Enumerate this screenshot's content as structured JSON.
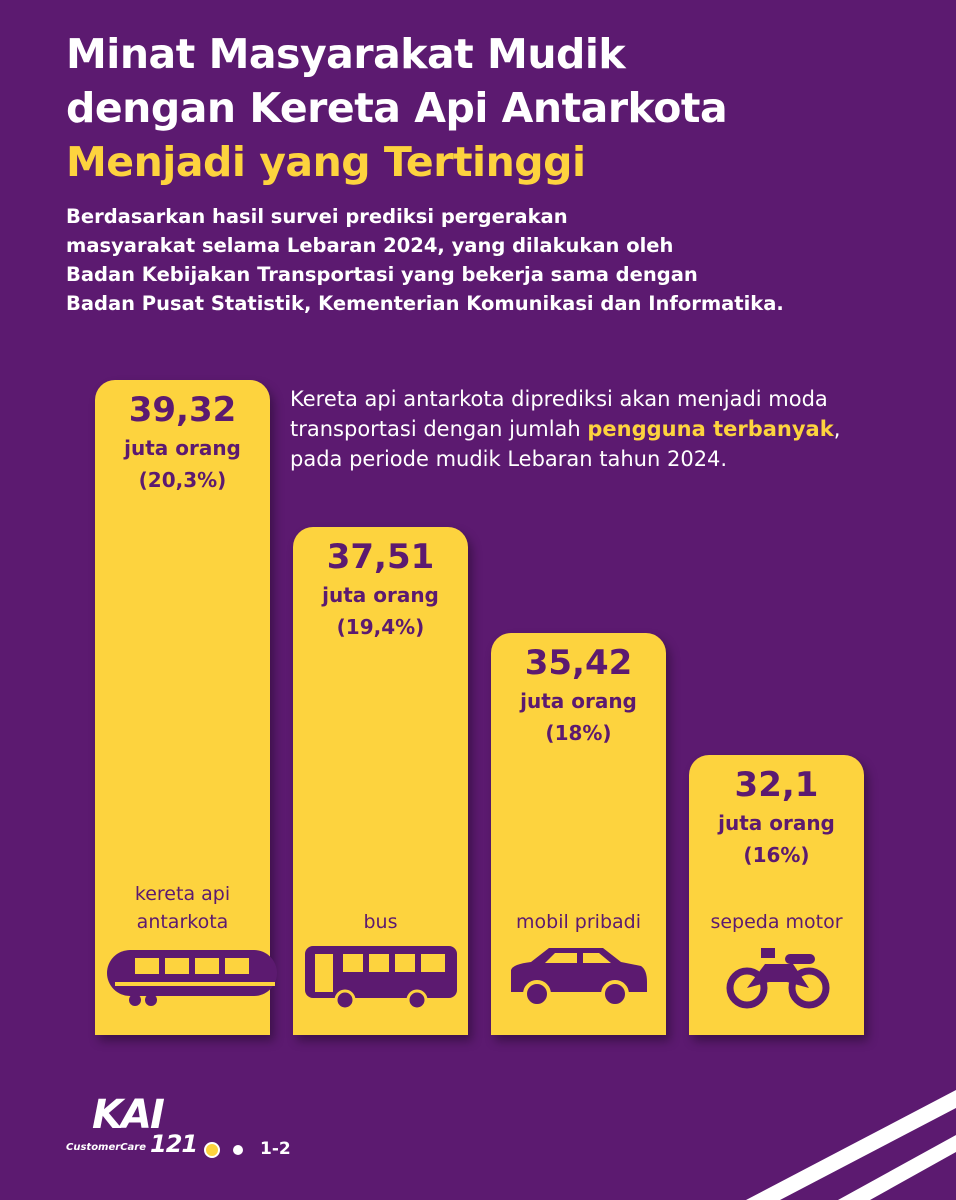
{
  "header": {
    "title_lines": [
      "Minat Masyarakat Mudik",
      "dengan Kereta Api Antarkota"
    ],
    "highlight": "Menjadi yang Tertinggi",
    "description": [
      "Berdasarkan hasil survei prediksi pergerakan",
      "masyarakat selama Lebaran 2024, yang dilakukan oleh",
      "Badan Kebijakan Transportasi yang bekerja sama dengan",
      "Badan Pusat Statistik, Kementerian Komunikasi dan Informatika."
    ]
  },
  "callout": {
    "before": "Kereta api antarkota diprediksi akan menjadi moda transportasi dengan jumlah ",
    "highlight": "pengguna terbanyak",
    "after": ", pada periode mudik Lebaran tahun 2024."
  },
  "bars": [
    {
      "value": "39,32",
      "unit": "juta orang",
      "share": "(20,3%)",
      "label": [
        "kereta api",
        "antarkota"
      ]
    },
    {
      "value": "37,51",
      "unit": "juta orang",
      "share": "(19,4%)",
      "label": [
        "bus"
      ]
    },
    {
      "value": "35,42",
      "unit": "juta orang",
      "share": "(18%)",
      "label": [
        "mobil pribadi"
      ]
    },
    {
      "value": "32,1",
      "unit": "juta orang",
      "share": "(16%)",
      "label": [
        "sepeda motor"
      ]
    }
  ],
  "footer": {
    "logo": "KAI",
    "logo_sub": "CustomerCare",
    "logo_num": "121",
    "page": "1-2"
  }
}
